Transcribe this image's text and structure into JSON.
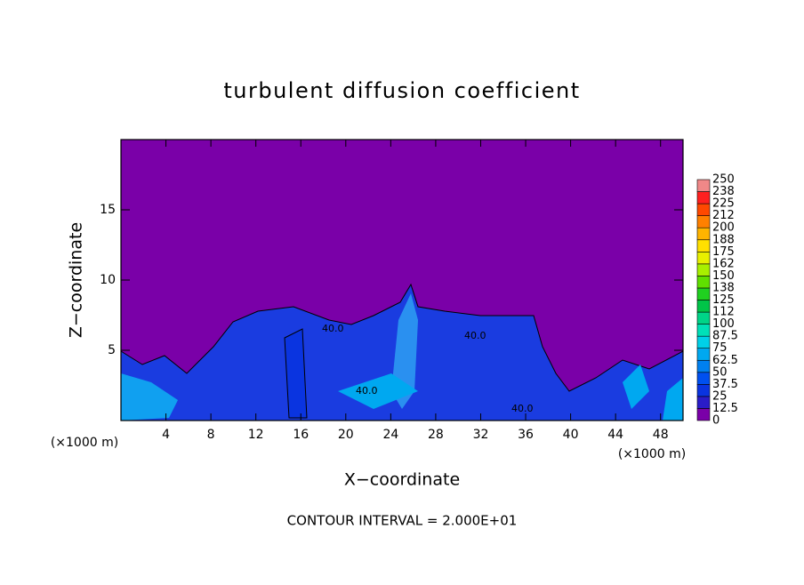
{
  "chart_data": {
    "type": "contour",
    "title": "turbulent diffusion coefficient",
    "x_label": "X−coordinate",
    "y_label": "Z−coordinate",
    "x_unit_left": "(×1000 m)",
    "x_unit_right": "(×1000 m)",
    "footer": "CONTOUR INTERVAL = 2.000E+01",
    "contour_labels": [
      "40.0",
      "40.0",
      "40.0",
      "40.0"
    ],
    "xlim": [
      0,
      50
    ],
    "xticks": [
      4,
      8,
      12,
      16,
      20,
      24,
      28,
      32,
      36,
      40,
      44,
      48
    ],
    "ylim": [
      0,
      20
    ],
    "yticks": [
      5,
      10,
      15
    ],
    "colorbar": {
      "levels": [
        0,
        12.5,
        25,
        37.5,
        50,
        62.5,
        75,
        87.5,
        100,
        112,
        125,
        138,
        150,
        162,
        175,
        188,
        200,
        212,
        225,
        238,
        250
      ],
      "colors": [
        "#7a00a8",
        "#2a1cc8",
        "#0a34e0",
        "#0050f0",
        "#0080f0",
        "#00a8f0",
        "#00d0e8",
        "#00e0b8",
        "#00d488",
        "#00c448",
        "#20d020",
        "#60e000",
        "#a8f000",
        "#e8f000",
        "#ffe000",
        "#ffb400",
        "#ff8000",
        "#ff4800",
        "#ff2020",
        "#f08888"
      ]
    }
  }
}
